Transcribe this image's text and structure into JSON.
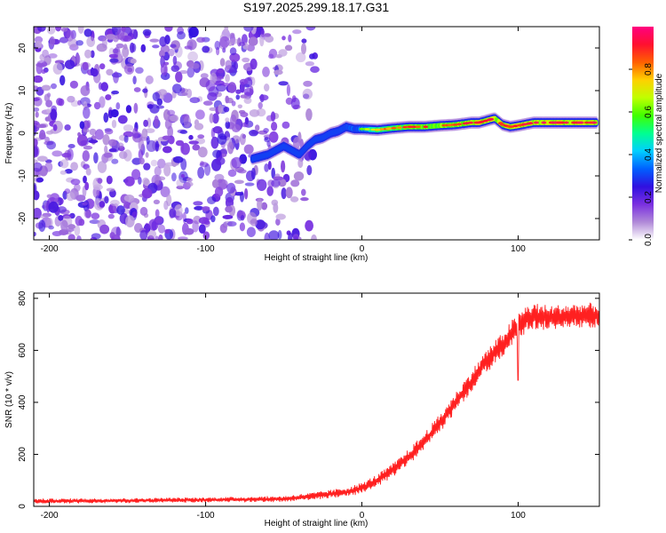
{
  "title": "S197.2025.299.18.17.G31",
  "chart_data": [
    {
      "type": "heatmap",
      "name": "spectrogram",
      "title": "S197.2025.299.18.17.G31",
      "xlabel": "Height of straight line (km)",
      "ylabel": "Frequency (Hz)",
      "xlim": [
        -210,
        152
      ],
      "ylim": [
        -25,
        25
      ],
      "xticks": [
        -200,
        -100,
        0,
        100
      ],
      "yticks": [
        -20,
        -10,
        0,
        10,
        20
      ],
      "colorbar": {
        "label": "Normalized spectral amplitude",
        "range": [
          0,
          1
        ],
        "ticks": [
          0.0,
          0.2,
          0.4,
          0.6,
          0.8
        ],
        "tick_labels": [
          "0.0",
          "0.2",
          "0.4",
          "0.6",
          "0.8"
        ],
        "colormap": [
          "#ffffff",
          "#b08ad8",
          "#7a2fe0",
          "#3010e0",
          "#0060ff",
          "#00d0ff",
          "#00ff90",
          "#40ff00",
          "#c0ff00",
          "#ffd000",
          "#ff6000",
          "#ff1030",
          "#ff0080"
        ]
      },
      "signal_track": {
        "x": [
          -70,
          -60,
          -50,
          -45,
          -40,
          -35,
          -30,
          -25,
          -20,
          -15,
          -10,
          -5,
          0,
          10,
          20,
          30,
          40,
          50,
          60,
          70,
          75,
          80,
          85,
          90,
          95,
          100,
          110,
          120,
          130,
          140,
          150
        ],
        "y": [
          -6,
          -5,
          -3,
          -4,
          -5,
          -3,
          -1.5,
          -1,
          0,
          0.5,
          1.5,
          1,
          1,
          0.8,
          1.2,
          1.5,
          1.5,
          1.8,
          2,
          2.5,
          2.5,
          3,
          3.5,
          2,
          1.5,
          1.8,
          2.5,
          2.5,
          2.5,
          2.5,
          2.5
        ],
        "amplitude": [
          0.3,
          0.3,
          0.3,
          0.3,
          0.3,
          0.3,
          0.4,
          0.4,
          0.45,
          0.5,
          0.5,
          0.55,
          0.6,
          0.75,
          0.8,
          0.85,
          0.85,
          0.85,
          0.85,
          0.88,
          0.9,
          0.9,
          0.9,
          0.88,
          0.88,
          0.9,
          0.9,
          0.92,
          0.9,
          0.9,
          0.9
        ]
      },
      "noise_region_x": [
        -210,
        -30
      ]
    },
    {
      "type": "line",
      "name": "snr",
      "xlabel": "Height of straight line (km)",
      "ylabel": "SNR (10 * v/v)",
      "xlim": [
        -210,
        152
      ],
      "ylim": [
        0,
        820
      ],
      "xticks": [
        -200,
        -100,
        0,
        100
      ],
      "yticks": [
        0,
        200,
        400,
        600,
        800
      ],
      "line_color": "#ff2020",
      "series": [
        {
          "name": "SNR",
          "x": [
            -210,
            -150,
            -100,
            -50,
            -30,
            -10,
            0,
            10,
            20,
            30,
            40,
            50,
            60,
            70,
            80,
            90,
            95,
            100,
            105,
            110,
            120,
            130,
            140,
            150
          ],
          "y": [
            20,
            22,
            25,
            28,
            40,
            55,
            70,
            100,
            140,
            190,
            250,
            320,
            400,
            480,
            560,
            620,
            660,
            690,
            720,
            730,
            725,
            730,
            735,
            735
          ],
          "noise_amplitude": [
            8,
            8,
            8,
            10,
            12,
            15,
            18,
            20,
            22,
            25,
            28,
            30,
            32,
            35,
            38,
            40,
            42,
            45,
            45,
            45,
            40,
            40,
            40,
            40
          ]
        }
      ]
    }
  ]
}
